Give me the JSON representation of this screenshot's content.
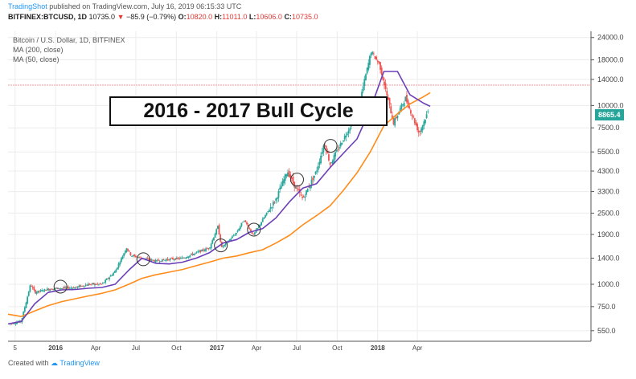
{
  "header": {
    "brand": "TradingShot",
    "published": "published on TradingView.com, July 16, 2019 06:15:33 UTC",
    "symbol": "BITFINEX:BTCUSD, 1D",
    "last": "10735.0",
    "change": "−85.9 (−0.79%)",
    "o_label": "O:",
    "o_value": "10820.0",
    "h_label": "H:",
    "h_value": "11011.0",
    "l_label": "L:",
    "l_value": "10606.0",
    "c_label": "C:",
    "c_value": "10735.0"
  },
  "legend": {
    "title": "Bitcoin / U.S. Dollar, 1D, BITFINEX",
    "ma200": "MA (200, close)",
    "ma50": "MA (50, close)"
  },
  "annotation": "2016 - 2017 Bull Cycle",
  "price_tag": "8865.4",
  "footer": {
    "prefix": "Created with",
    "brand": "TradingView"
  },
  "colors": {
    "ma50": "#6b3fb8",
    "ma200": "#ff8c1a",
    "up": "#26a69a",
    "down": "#ef5350",
    "hline": "#ef9a9a",
    "grid": "#ececec",
    "price_tag": "#26a69a"
  },
  "chart_data": {
    "type": "line",
    "y_scale": "log",
    "ylim": [
      480,
      26000
    ],
    "y_ticks": [
      24000,
      18000,
      14000,
      10000,
      7500,
      5500,
      4300,
      3300,
      2500,
      1900,
      1400,
      1000,
      750,
      550
    ],
    "y_tick_labels": [
      "24000.0",
      "18000.0",
      "14000.0",
      "10000.0",
      "7500.0",
      "5500.0",
      "4300.0",
      "3300.0",
      "2500.0",
      "1900.0",
      "1400.0",
      "1000.0",
      "750.0",
      "550.0"
    ],
    "x_range": [
      "2015-09-15",
      "2019-04-30"
    ],
    "x_ticks": [
      {
        "date": "2015-10-01",
        "label": "5"
      },
      {
        "date": "2016-01-01",
        "label": "2016"
      },
      {
        "date": "2016-04-01",
        "label": "Apr"
      },
      {
        "date": "2016-07-01",
        "label": "Jul"
      },
      {
        "date": "2016-10-01",
        "label": "Oct"
      },
      {
        "date": "2017-01-01",
        "label": "2017"
      },
      {
        "date": "2017-04-01",
        "label": "Apr"
      },
      {
        "date": "2017-07-01",
        "label": "Jul"
      },
      {
        "date": "2017-10-01",
        "label": "Oct"
      },
      {
        "date": "2018-01-01",
        "label": "2018"
      },
      {
        "date": "2018-04-01",
        "label": "Apr"
      }
    ],
    "horizontal_line": 13000,
    "series": [
      {
        "name": "Price",
        "x": [
          "2015-09-15",
          "2015-10-15",
          "2015-11-05",
          "2015-11-15",
          "2015-12-15",
          "2016-01-15",
          "2016-02-15",
          "2016-03-15",
          "2016-04-15",
          "2016-05-15",
          "2016-06-10",
          "2016-06-20",
          "2016-07-15",
          "2016-08-15",
          "2016-09-15",
          "2016-10-15",
          "2016-11-15",
          "2016-12-15",
          "2017-01-03",
          "2017-01-12",
          "2017-02-15",
          "2017-03-03",
          "2017-03-25",
          "2017-04-15",
          "2017-05-15",
          "2017-06-10",
          "2017-06-25",
          "2017-07-15",
          "2017-08-15",
          "2017-09-02",
          "2017-09-15",
          "2017-10-15",
          "2017-11-15",
          "2017-12-17",
          "2018-01-05",
          "2018-02-06",
          "2018-03-05",
          "2018-04-05",
          "2018-04-25"
        ],
        "y": [
          600,
          620,
          1000,
          900,
          940,
          950,
          960,
          1000,
          1000,
          1180,
          1600,
          1450,
          1400,
          1350,
          1380,
          1400,
          1500,
          1600,
          2100,
          1600,
          1950,
          2300,
          1880,
          2300,
          3000,
          4300,
          3600,
          3000,
          4300,
          6200,
          4700,
          6500,
          9000,
          20000,
          17000,
          8000,
          11000,
          7000,
          9200
        ]
      },
      {
        "name": "MA (50, close)",
        "x": [
          "2015-09-15",
          "2015-10-15",
          "2015-11-15",
          "2015-12-15",
          "2016-01-15",
          "2016-02-15",
          "2016-03-15",
          "2016-04-15",
          "2016-05-15",
          "2016-06-15",
          "2016-07-15",
          "2016-08-15",
          "2016-09-15",
          "2016-10-15",
          "2016-11-15",
          "2016-12-15",
          "2017-01-15",
          "2017-02-15",
          "2017-03-15",
          "2017-04-15",
          "2017-05-15",
          "2017-06-15",
          "2017-07-15",
          "2017-08-15",
          "2017-09-15",
          "2017-10-15",
          "2017-11-15",
          "2017-12-15",
          "2018-01-15",
          "2018-02-15",
          "2018-03-15",
          "2018-04-15",
          "2018-04-30"
        ],
        "y": [
          600,
          620,
          780,
          900,
          930,
          935,
          950,
          960,
          1000,
          1200,
          1400,
          1310,
          1300,
          1330,
          1400,
          1500,
          1700,
          1780,
          1950,
          2050,
          2350,
          2900,
          3450,
          3650,
          4500,
          5400,
          6500,
          9500,
          15500,
          15500,
          11500,
          10300,
          9900
        ]
      },
      {
        "name": "MA (200, close)",
        "x": [
          "2015-09-15",
          "2015-10-15",
          "2015-11-15",
          "2015-12-15",
          "2016-01-15",
          "2016-02-15",
          "2016-03-15",
          "2016-04-15",
          "2016-05-15",
          "2016-06-15",
          "2016-07-15",
          "2016-08-15",
          "2016-09-15",
          "2016-10-15",
          "2016-11-15",
          "2016-12-15",
          "2017-01-15",
          "2017-02-15",
          "2017-03-15",
          "2017-04-15",
          "2017-05-15",
          "2017-06-15",
          "2017-07-15",
          "2017-08-15",
          "2017-09-15",
          "2017-10-15",
          "2017-11-15",
          "2017-12-15",
          "2018-01-15",
          "2018-02-15",
          "2018-03-15",
          "2018-04-15",
          "2018-04-30"
        ],
        "y": [
          680,
          660,
          710,
          760,
          800,
          830,
          860,
          890,
          930,
          1000,
          1080,
          1130,
          1170,
          1210,
          1270,
          1330,
          1400,
          1440,
          1500,
          1560,
          1700,
          1880,
          2150,
          2420,
          2750,
          3350,
          4200,
          5500,
          7700,
          9000,
          10200,
          11200,
          11800
        ]
      }
    ],
    "circles": [
      {
        "date": "2016-01-12",
        "value": 970
      },
      {
        "date": "2016-07-18",
        "value": 1380
      },
      {
        "date": "2017-01-10",
        "value": 1650
      },
      {
        "date": "2017-03-26",
        "value": 2020
      },
      {
        "date": "2017-07-02",
        "value": 3850
      },
      {
        "date": "2017-09-16",
        "value": 5950
      }
    ]
  }
}
